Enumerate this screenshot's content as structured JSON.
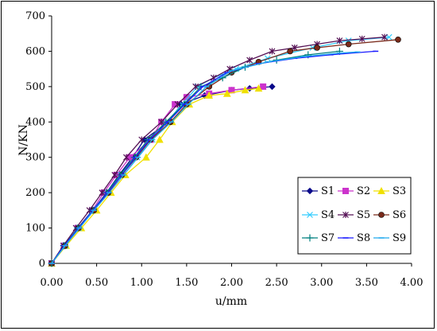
{
  "chart_data": {
    "type": "line",
    "title": "",
    "xlabel": "u/mm",
    "ylabel": "N/KN",
    "xlim": [
      0,
      4
    ],
    "ylim": [
      0,
      700
    ],
    "x_ticks": [
      "0.00",
      "0.50",
      "1.00",
      "1.50",
      "2.00",
      "2.50",
      "3.00",
      "3.50",
      "4.00"
    ],
    "y_ticks": [
      "0",
      "100",
      "200",
      "300",
      "400",
      "500",
      "600",
      "700"
    ],
    "grid": false,
    "legend_position": "bottom-right",
    "series": [
      {
        "name": "S1",
        "color": "#0a0a8a",
        "marker": "diamond",
        "points": [
          [
            0,
            0
          ],
          [
            0.13,
            50
          ],
          [
            0.3,
            100
          ],
          [
            0.46,
            150
          ],
          [
            0.61,
            200
          ],
          [
            0.75,
            250
          ],
          [
            0.9,
            300
          ],
          [
            1.03,
            350
          ],
          [
            1.3,
            400
          ],
          [
            1.44,
            450
          ],
          [
            1.7,
            475
          ],
          [
            2.0,
            490
          ],
          [
            2.2,
            495
          ],
          [
            2.45,
            500
          ]
        ]
      },
      {
        "name": "S2",
        "color": "#cc33cc",
        "marker": "square",
        "points": [
          [
            0,
            0
          ],
          [
            0.14,
            50
          ],
          [
            0.29,
            100
          ],
          [
            0.45,
            150
          ],
          [
            0.58,
            200
          ],
          [
            0.72,
            250
          ],
          [
            0.87,
            300
          ],
          [
            1.1,
            350
          ],
          [
            1.22,
            400
          ],
          [
            1.37,
            450
          ],
          [
            1.5,
            470
          ],
          [
            1.75,
            480
          ],
          [
            2.0,
            490
          ],
          [
            2.35,
            500
          ]
        ]
      },
      {
        "name": "S3",
        "color": "#f0e000",
        "marker": "triangle",
        "points": [
          [
            0,
            0
          ],
          [
            0.16,
            50
          ],
          [
            0.33,
            100
          ],
          [
            0.5,
            150
          ],
          [
            0.66,
            200
          ],
          [
            0.82,
            250
          ],
          [
            1.05,
            300
          ],
          [
            1.2,
            350
          ],
          [
            1.34,
            400
          ],
          [
            1.53,
            450
          ],
          [
            1.75,
            475
          ],
          [
            1.95,
            480
          ],
          [
            2.15,
            490
          ],
          [
            2.3,
            495
          ]
        ]
      },
      {
        "name": "S4",
        "color": "#33ccff",
        "marker": "x",
        "points": [
          [
            0,
            0
          ],
          [
            0.15,
            50
          ],
          [
            0.3,
            100
          ],
          [
            0.45,
            150
          ],
          [
            0.62,
            200
          ],
          [
            0.77,
            250
          ],
          [
            0.95,
            300
          ],
          [
            1.12,
            350
          ],
          [
            1.28,
            400
          ],
          [
            1.45,
            450
          ],
          [
            1.62,
            500
          ],
          [
            1.8,
            525
          ],
          [
            2.05,
            550
          ],
          [
            2.4,
            580
          ],
          [
            2.9,
            610
          ],
          [
            3.3,
            630
          ],
          [
            3.75,
            640
          ]
        ]
      },
      {
        "name": "S5",
        "color": "#551155",
        "marker": "asterisk",
        "points": [
          [
            0,
            0
          ],
          [
            0.13,
            50
          ],
          [
            0.27,
            100
          ],
          [
            0.42,
            150
          ],
          [
            0.56,
            200
          ],
          [
            0.7,
            250
          ],
          [
            0.83,
            300
          ],
          [
            1.0,
            350
          ],
          [
            1.22,
            400
          ],
          [
            1.4,
            450
          ],
          [
            1.6,
            500
          ],
          [
            1.8,
            525
          ],
          [
            1.98,
            550
          ],
          [
            2.2,
            575
          ],
          [
            2.45,
            600
          ],
          [
            2.7,
            610
          ],
          [
            2.95,
            620
          ],
          [
            3.2,
            630
          ],
          [
            3.45,
            635
          ],
          [
            3.7,
            640
          ]
        ]
      },
      {
        "name": "S6",
        "color": "#7a2a1a",
        "marker": "circle",
        "points": [
          [
            0,
            0
          ],
          [
            0.15,
            50
          ],
          [
            0.3,
            100
          ],
          [
            0.47,
            150
          ],
          [
            0.63,
            200
          ],
          [
            0.78,
            250
          ],
          [
            0.94,
            300
          ],
          [
            1.1,
            350
          ],
          [
            1.32,
            400
          ],
          [
            1.5,
            450
          ],
          [
            1.75,
            500
          ],
          [
            2.0,
            540
          ],
          [
            2.3,
            570
          ],
          [
            2.65,
            600
          ],
          [
            2.95,
            610
          ],
          [
            3.3,
            620
          ],
          [
            3.85,
            633
          ]
        ]
      },
      {
        "name": "S7",
        "color": "#008080",
        "marker": "plus",
        "points": [
          [
            0,
            0
          ],
          [
            0.14,
            50
          ],
          [
            0.29,
            100
          ],
          [
            0.46,
            150
          ],
          [
            0.61,
            200
          ],
          [
            0.76,
            250
          ],
          [
            0.92,
            300
          ],
          [
            1.07,
            350
          ],
          [
            1.27,
            400
          ],
          [
            1.47,
            450
          ],
          [
            1.66,
            500
          ],
          [
            1.9,
            525
          ],
          [
            2.15,
            555
          ],
          [
            2.5,
            575
          ],
          [
            2.85,
            590
          ],
          [
            3.2,
            600
          ]
        ]
      },
      {
        "name": "S8",
        "color": "#1a1aff",
        "marker": "dash",
        "points": [
          [
            0,
            0
          ],
          [
            0.14,
            50
          ],
          [
            0.3,
            100
          ],
          [
            0.46,
            150
          ],
          [
            0.62,
            200
          ],
          [
            0.78,
            250
          ],
          [
            0.93,
            300
          ],
          [
            1.09,
            350
          ],
          [
            1.29,
            400
          ],
          [
            1.48,
            450
          ],
          [
            1.68,
            500
          ],
          [
            1.95,
            540
          ],
          [
            2.3,
            565
          ],
          [
            2.7,
            580
          ],
          [
            3.1,
            590
          ],
          [
            3.6,
            600
          ]
        ]
      },
      {
        "name": "S9",
        "color": "#22aaee",
        "marker": "dash",
        "points": [
          [
            0,
            0
          ],
          [
            0.15,
            50
          ],
          [
            0.31,
            100
          ],
          [
            0.47,
            150
          ],
          [
            0.64,
            200
          ],
          [
            0.8,
            250
          ],
          [
            0.96,
            300
          ],
          [
            1.12,
            350
          ],
          [
            1.33,
            400
          ],
          [
            1.52,
            450
          ],
          [
            1.72,
            500
          ],
          [
            2.0,
            545
          ],
          [
            2.4,
            570
          ],
          [
            2.8,
            585
          ],
          [
            3.2,
            595
          ],
          [
            3.4,
            598
          ]
        ]
      }
    ]
  }
}
